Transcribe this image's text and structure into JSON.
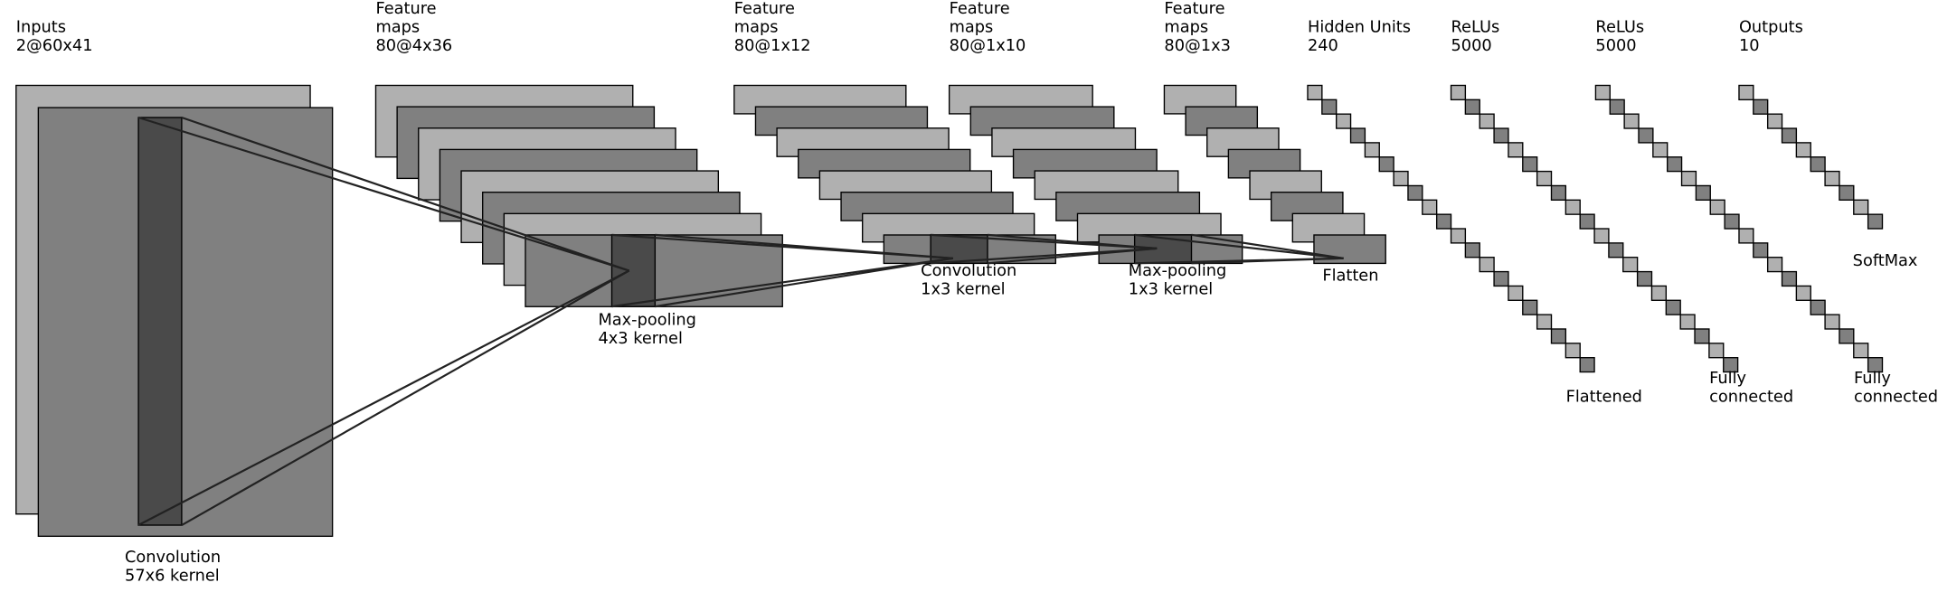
{
  "layers": [
    {
      "lines": [
        "Inputs",
        "2@60x41"
      ]
    },
    {
      "lines": [
        "Feature",
        "maps",
        "80@4x36"
      ]
    },
    {
      "lines": [
        "Feature",
        "maps",
        "80@1x12"
      ]
    },
    {
      "lines": [
        "Feature",
        "maps",
        "80@1x10"
      ]
    },
    {
      "lines": [
        "Feature",
        "maps",
        "80@1x3"
      ]
    },
    {
      "lines": [
        "Hidden Units",
        "240"
      ]
    },
    {
      "lines": [
        "ReLUs",
        "5000"
      ]
    },
    {
      "lines": [
        "ReLUs",
        "5000"
      ]
    },
    {
      "lines": [
        "Outputs",
        "10"
      ]
    }
  ],
  "operations": [
    {
      "lines": [
        "Convolution",
        "57x6 kernel"
      ]
    },
    {
      "lines": [
        "Max-pooling",
        "4x3 kernel"
      ]
    },
    {
      "lines": [
        "Convolution",
        "1x3 kernel"
      ]
    },
    {
      "lines": [
        "Max-pooling",
        "1x3 kernel"
      ]
    },
    {
      "lines": [
        "Flatten"
      ]
    },
    {
      "lines": [
        "Flattened"
      ]
    },
    {
      "lines": [
        "Fully",
        "connected"
      ]
    },
    {
      "lines": [
        "Fully",
        "connected"
      ]
    },
    {
      "lines": [
        "SoftMax"
      ]
    }
  ]
}
